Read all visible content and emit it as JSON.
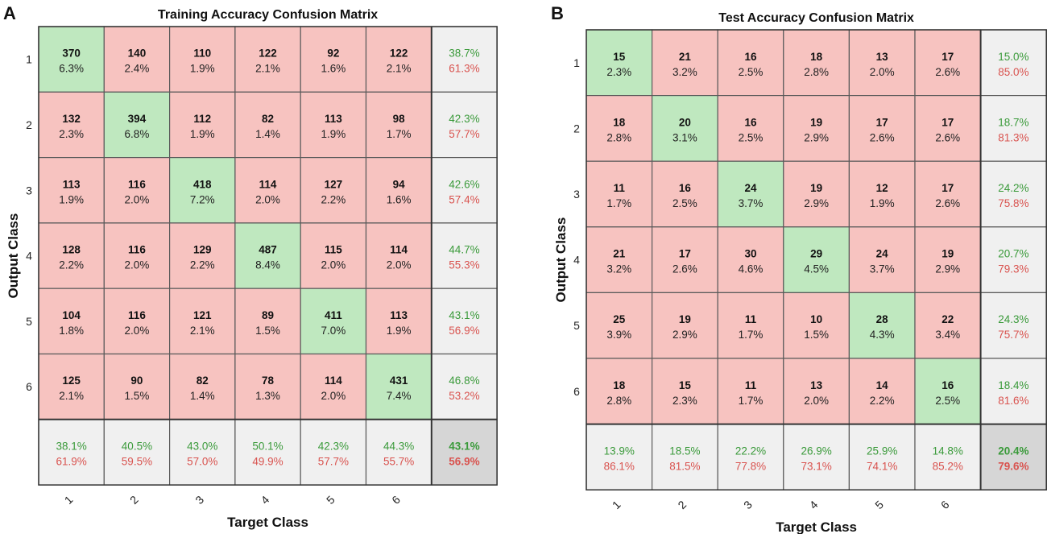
{
  "colors": {
    "correct_cell": "#bfe8bf",
    "error_cell": "#f7c3c0",
    "summary_cell": "#f0f0f0",
    "total_cell": "#d6d6d6",
    "good_text": "#3a9a3a",
    "bad_text": "#d9534f",
    "grid_line": "#5a5a5a"
  },
  "chart_data": [
    {
      "type": "heatmap",
      "panel_label": "A",
      "title": "Training Accuracy Confusion Matrix",
      "xlabel": "Target Class",
      "ylabel": "Output Class",
      "row_labels": [
        "1",
        "2",
        "3",
        "4",
        "5",
        "6"
      ],
      "col_labels": [
        "1",
        "2",
        "3",
        "4",
        "5",
        "6"
      ],
      "counts": [
        [
          370,
          140,
          110,
          122,
          92,
          122
        ],
        [
          132,
          394,
          112,
          82,
          113,
          98
        ],
        [
          113,
          116,
          418,
          114,
          127,
          94
        ],
        [
          128,
          116,
          129,
          487,
          115,
          114
        ],
        [
          104,
          116,
          121,
          89,
          411,
          113
        ],
        [
          125,
          90,
          82,
          78,
          114,
          431
        ]
      ],
      "percents": [
        [
          "6.3%",
          "2.4%",
          "1.9%",
          "2.1%",
          "1.6%",
          "2.1%"
        ],
        [
          "2.3%",
          "6.8%",
          "1.9%",
          "1.4%",
          "1.9%",
          "1.7%"
        ],
        [
          "1.9%",
          "2.0%",
          "7.2%",
          "2.0%",
          "2.2%",
          "1.6%"
        ],
        [
          "2.2%",
          "2.0%",
          "2.2%",
          "8.4%",
          "2.0%",
          "2.0%"
        ],
        [
          "1.8%",
          "2.0%",
          "2.1%",
          "1.5%",
          "7.0%",
          "1.9%"
        ],
        [
          "2.1%",
          "1.5%",
          "1.4%",
          "1.3%",
          "2.0%",
          "7.4%"
        ]
      ],
      "row_summary": [
        [
          "38.7%",
          "61.3%"
        ],
        [
          "42.3%",
          "57.7%"
        ],
        [
          "42.6%",
          "57.4%"
        ],
        [
          "44.7%",
          "55.3%"
        ],
        [
          "43.1%",
          "56.9%"
        ],
        [
          "46.8%",
          "53.2%"
        ]
      ],
      "col_summary": [
        [
          "38.1%",
          "61.9%"
        ],
        [
          "40.5%",
          "59.5%"
        ],
        [
          "43.0%",
          "57.0%"
        ],
        [
          "50.1%",
          "49.9%"
        ],
        [
          "42.3%",
          "57.7%"
        ],
        [
          "44.3%",
          "55.7%"
        ]
      ],
      "overall": [
        "43.1%",
        "56.9%"
      ]
    },
    {
      "type": "heatmap",
      "panel_label": "B",
      "title": "Test Accuracy Confusion Matrix",
      "xlabel": "Target Class",
      "ylabel": "Output Class",
      "row_labels": [
        "1",
        "2",
        "3",
        "4",
        "5",
        "6"
      ],
      "col_labels": [
        "1",
        "2",
        "3",
        "4",
        "5",
        "6"
      ],
      "counts": [
        [
          15,
          21,
          16,
          18,
          13,
          17
        ],
        [
          18,
          20,
          16,
          19,
          17,
          17
        ],
        [
          11,
          16,
          24,
          19,
          12,
          17
        ],
        [
          21,
          17,
          30,
          29,
          24,
          19
        ],
        [
          25,
          19,
          11,
          10,
          28,
          22
        ],
        [
          18,
          15,
          11,
          13,
          14,
          16
        ]
      ],
      "percents": [
        [
          "2.3%",
          "3.2%",
          "2.5%",
          "2.8%",
          "2.0%",
          "2.6%"
        ],
        [
          "2.8%",
          "3.1%",
          "2.5%",
          "2.9%",
          "2.6%",
          "2.6%"
        ],
        [
          "1.7%",
          "2.5%",
          "3.7%",
          "2.9%",
          "1.9%",
          "2.6%"
        ],
        [
          "3.2%",
          "2.6%",
          "4.6%",
          "4.5%",
          "3.7%",
          "2.9%"
        ],
        [
          "3.9%",
          "2.9%",
          "1.7%",
          "1.5%",
          "4.3%",
          "3.4%"
        ],
        [
          "2.8%",
          "2.3%",
          "1.7%",
          "2.0%",
          "2.2%",
          "2.5%"
        ]
      ],
      "row_summary": [
        [
          "15.0%",
          "85.0%"
        ],
        [
          "18.7%",
          "81.3%"
        ],
        [
          "24.2%",
          "75.8%"
        ],
        [
          "20.7%",
          "79.3%"
        ],
        [
          "24.3%",
          "75.7%"
        ],
        [
          "18.4%",
          "81.6%"
        ]
      ],
      "col_summary": [
        [
          "13.9%",
          "86.1%"
        ],
        [
          "18.5%",
          "81.5%"
        ],
        [
          "22.2%",
          "77.8%"
        ],
        [
          "26.9%",
          "73.1%"
        ],
        [
          "25.9%",
          "74.1%"
        ],
        [
          "14.8%",
          "85.2%"
        ]
      ],
      "overall": [
        "20.4%",
        "79.6%"
      ]
    }
  ]
}
